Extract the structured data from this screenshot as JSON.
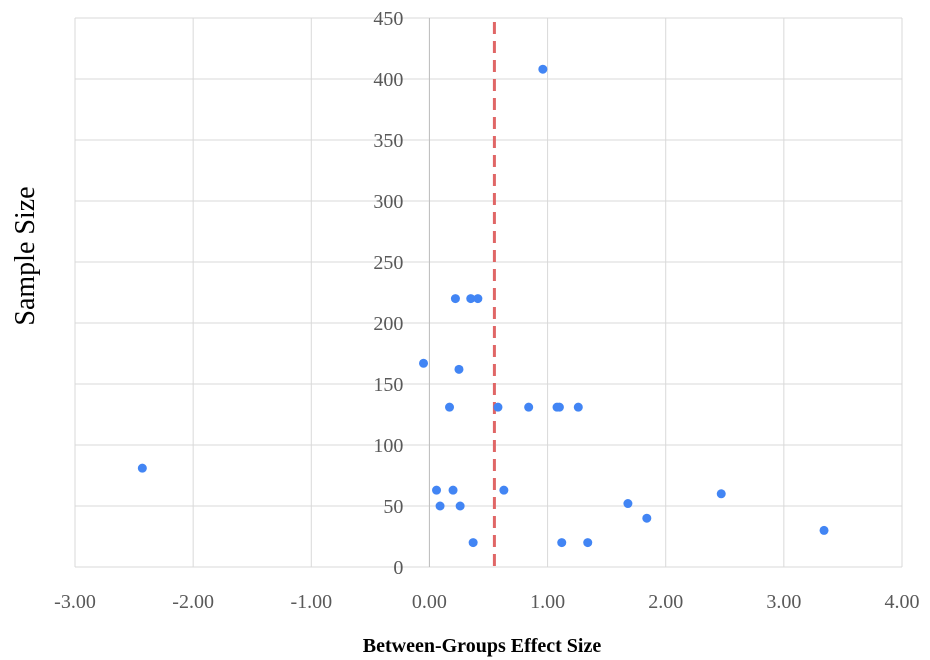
{
  "chart_data": {
    "type": "scatter",
    "title": "",
    "xlabel": "Between-Groups Effect Size",
    "ylabel": "Sample Size",
    "xlim": [
      -3,
      4
    ],
    "ylim": [
      0,
      450
    ],
    "x_ticks": [
      "-3.00",
      "-2.00",
      "-1.00",
      "0.00",
      "1.00",
      "2.00",
      "3.00",
      "4.00"
    ],
    "y_ticks": [
      "0",
      "50",
      "100",
      "150",
      "200",
      "250",
      "300",
      "350",
      "400",
      "450"
    ],
    "grid": true,
    "legend": "none",
    "reference_line": {
      "orientation": "vertical",
      "x": 0.55,
      "style": "dashed",
      "color": "#e06666"
    },
    "point_color": "#4285f4",
    "points": [
      {
        "x": -2.43,
        "y": 81
      },
      {
        "x": -0.05,
        "y": 167
      },
      {
        "x": 0.06,
        "y": 63
      },
      {
        "x": 0.09,
        "y": 50
      },
      {
        "x": 0.17,
        "y": 131
      },
      {
        "x": 0.2,
        "y": 63
      },
      {
        "x": 0.22,
        "y": 220
      },
      {
        "x": 0.25,
        "y": 162
      },
      {
        "x": 0.26,
        "y": 50
      },
      {
        "x": 0.35,
        "y": 220
      },
      {
        "x": 0.37,
        "y": 20
      },
      {
        "x": 0.41,
        "y": 220
      },
      {
        "x": 0.58,
        "y": 131
      },
      {
        "x": 0.63,
        "y": 63
      },
      {
        "x": 0.84,
        "y": 131
      },
      {
        "x": 0.96,
        "y": 408
      },
      {
        "x": 1.08,
        "y": 131
      },
      {
        "x": 1.1,
        "y": 131
      },
      {
        "x": 1.12,
        "y": 20
      },
      {
        "x": 1.26,
        "y": 131
      },
      {
        "x": 1.34,
        "y": 20
      },
      {
        "x": 1.68,
        "y": 52
      },
      {
        "x": 1.84,
        "y": 40
      },
      {
        "x": 2.47,
        "y": 60
      },
      {
        "x": 3.34,
        "y": 30
      }
    ]
  }
}
